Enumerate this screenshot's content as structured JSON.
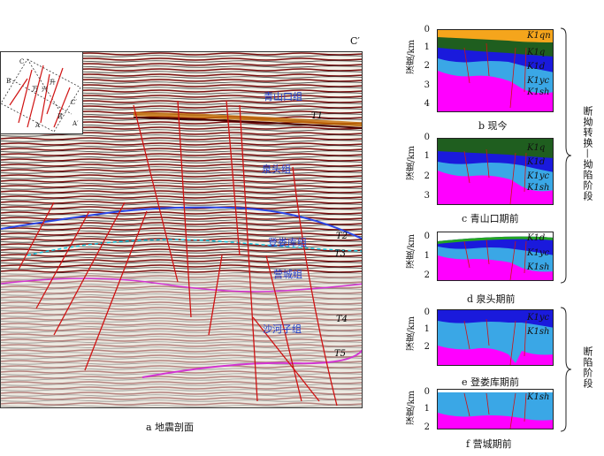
{
  "figure": {
    "caption_a": "a 地震剖面",
    "corner_label": "C′",
    "formations": [
      "青山口组",
      "泉头组",
      "登娄库组",
      "营城组",
      "沙河子组"
    ],
    "horizons": [
      "T1",
      "T2",
      "T3",
      "T4",
      "T5"
    ],
    "inset": {
      "labels": [
        "C",
        "B",
        "A",
        "C′",
        "B′",
        "A′",
        "升",
        "万",
        "兴"
      ]
    }
  },
  "panels": {
    "yaxis_label": "深度/km",
    "b": {
      "caption": "b 现今",
      "ticks": [
        "0",
        "1",
        "2",
        "3",
        "4"
      ],
      "units": [
        "K1qn",
        "K1q",
        "K1d",
        "K1yc",
        "K1sh"
      ]
    },
    "c": {
      "caption": "c 青山口期前",
      "ticks": [
        "0",
        "1",
        "2",
        "3"
      ],
      "units": [
        "K1q",
        "K1d",
        "K1yc",
        "K1sh"
      ]
    },
    "d": {
      "caption": "d 泉头期前",
      "ticks": [
        "0",
        "1",
        "2"
      ],
      "units": [
        "K1d",
        "K1yc",
        "K1sh"
      ]
    },
    "e": {
      "caption": "e 登娄库期前",
      "ticks": [
        "0",
        "1",
        "2"
      ],
      "units": [
        "K1yc",
        "K1sh"
      ]
    },
    "f": {
      "caption": "f 营城期前",
      "ticks": [
        "0",
        "1",
        "2"
      ],
      "units": [
        "K1sh"
      ]
    }
  },
  "stages": {
    "upper": "断拗转换—拗陷阶段",
    "lower": "断陷阶段"
  },
  "colors": {
    "qn": "#f5a51c",
    "q": "#1f5e1f",
    "d": "#1a1adc",
    "yc": "#3aa7e6",
    "sh": "#ff00ff",
    "formation_label": "#1f3fd0"
  }
}
